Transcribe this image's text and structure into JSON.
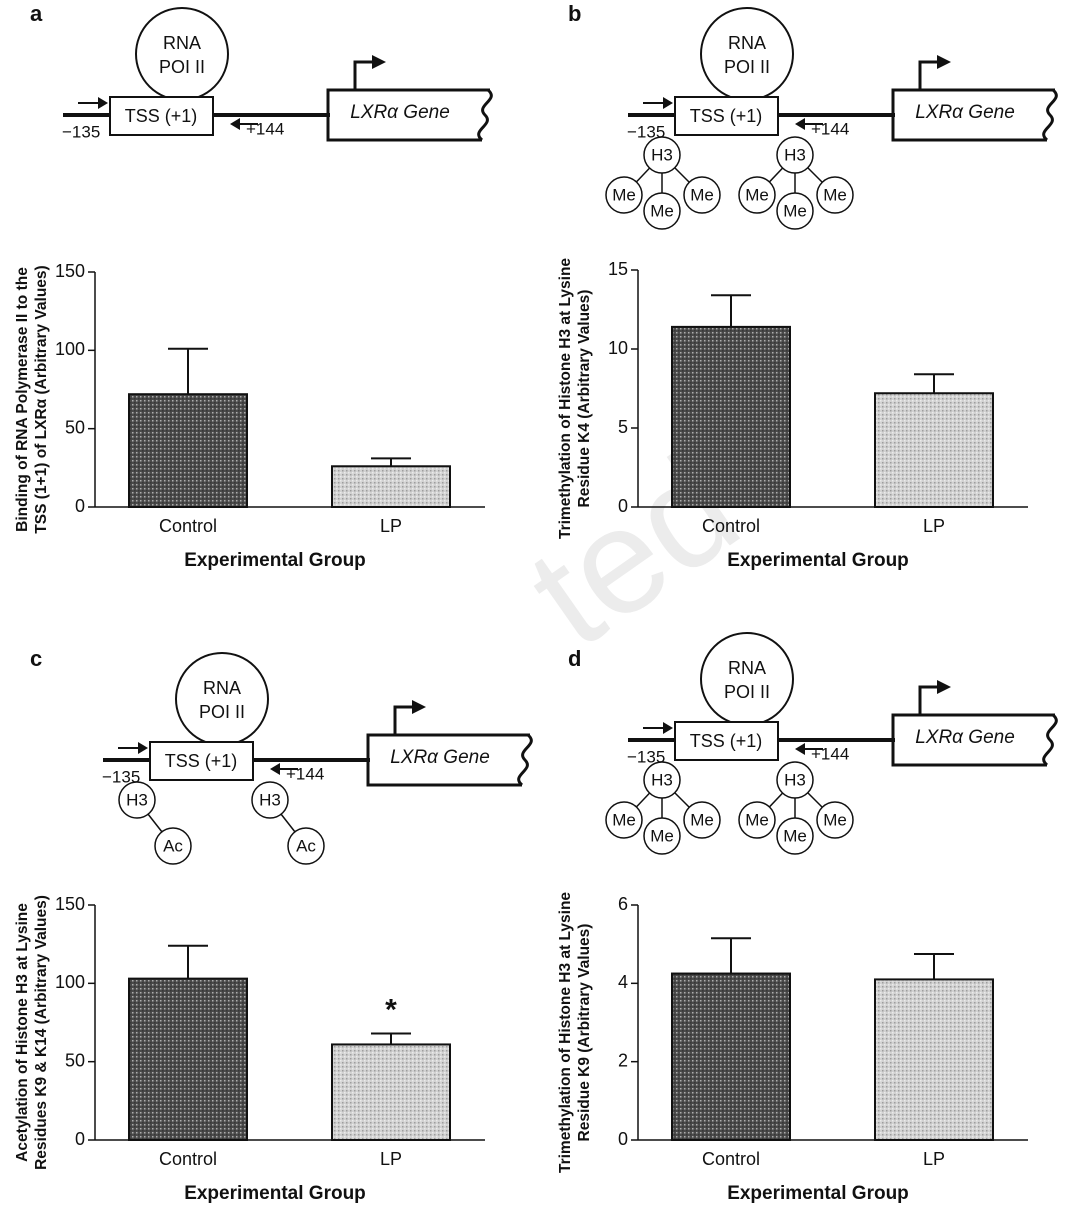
{
  "watermark": "ted",
  "chart_data": [
    {
      "panel": "a",
      "type": "bar",
      "diagram": {
        "polymerase": [
          "RNA",
          "POI II"
        ],
        "tss": "TSS (+1)",
        "start": "−135",
        "end": "+144",
        "gene": "LXRα Gene"
      },
      "categories": [
        "Control",
        "LP"
      ],
      "values": [
        72,
        26
      ],
      "errors": [
        29,
        5
      ],
      "colors": [
        "#4a4a4a",
        "#d2d2d2"
      ],
      "ylim": [
        0,
        150
      ],
      "yticks": [
        0,
        50,
        100,
        150
      ],
      "xlabel": "Experimental Group",
      "ylabel": [
        "Binding of RNA Polymerase II to the",
        "TSS (1+1) of LXRα (Arbitrary Values)"
      ]
    },
    {
      "panel": "b",
      "type": "bar",
      "diagram": {
        "polymerase": [
          "RNA",
          "POI II"
        ],
        "tss": "TSS (+1)",
        "start": "−135",
        "end": "+144",
        "gene": "LXRα Gene",
        "modifications": [
          "H3",
          "H3"
        ],
        "marks": [
          "Me",
          "Me",
          "Me",
          "Me",
          "Me",
          "Me"
        ]
      },
      "categories": [
        "Control",
        "LP"
      ],
      "values": [
        11.4,
        7.2
      ],
      "errors": [
        2,
        1.2
      ],
      "colors": [
        "#4a4a4a",
        "#d2d2d2"
      ],
      "ylim": [
        0,
        15
      ],
      "yticks": [
        0,
        5,
        10,
        15
      ],
      "xlabel": "Experimental Group",
      "ylabel": [
        "Trimethylation of Histone H3 at Lysine",
        "Residue K4 (Arbitrary Values)"
      ]
    },
    {
      "panel": "c",
      "type": "bar",
      "diagram": {
        "polymerase": [
          "RNA",
          "POI II"
        ],
        "tss": "TSS (+1)",
        "start": "−135",
        "end": "+144",
        "gene": "LXRα Gene",
        "modifications": [
          "H3",
          "H3"
        ],
        "marks": [
          "Ac",
          "Ac"
        ]
      },
      "categories": [
        "Control",
        "LP"
      ],
      "values": [
        103,
        61
      ],
      "errors": [
        21,
        7
      ],
      "colors": [
        "#4a4a4a",
        "#d2d2d2"
      ],
      "ylim": [
        0,
        150
      ],
      "yticks": [
        0,
        50,
        100,
        150
      ],
      "annotations": [
        {
          "text": "*",
          "category": "LP"
        }
      ],
      "xlabel": "Experimental Group",
      "ylabel": [
        "Acetylation of Histone H3 at Lysine",
        "Residues K9 & K14 (Arbitrary Values)"
      ]
    },
    {
      "panel": "d",
      "type": "bar",
      "diagram": {
        "polymerase": [
          "RNA",
          "POI II"
        ],
        "tss": "TSS (+1)",
        "start": "−135",
        "end": "+144",
        "gene": "LXRα Gene",
        "modifications": [
          "H3",
          "H3"
        ],
        "marks": [
          "Me",
          "Me",
          "Me",
          "Me",
          "Me",
          "Me"
        ]
      },
      "categories": [
        "Control",
        "LP"
      ],
      "values": [
        4.25,
        4.1
      ],
      "errors": [
        0.9,
        0.65
      ],
      "colors": [
        "#4a4a4a",
        "#d2d2d2"
      ],
      "ylim": [
        0,
        6
      ],
      "yticks": [
        0,
        2,
        4,
        6
      ],
      "xlabel": "Experimental Group",
      "ylabel": [
        "Trimethylation of Histone H3 at Lysine",
        "Residue K9 (Arbitrary Values)"
      ]
    }
  ]
}
